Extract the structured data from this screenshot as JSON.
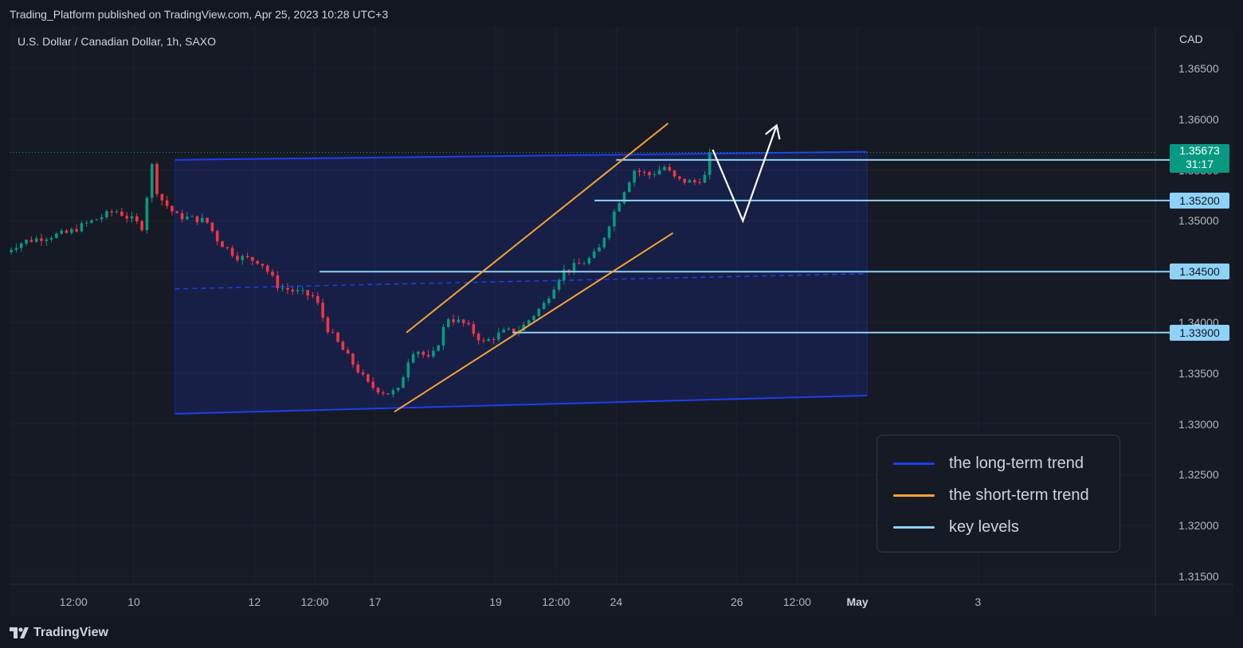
{
  "header": {
    "published_line": "Trading_Platform published on TradingView.com, Apr 25, 2023 10:28 UTC+3"
  },
  "chart": {
    "symbol_line": "U.S. Dollar / Canadian Dollar, 1h, SAXO",
    "currency": "CAD",
    "last_price": "1.35673",
    "countdown": "31:17"
  },
  "footer": {
    "brand": "TradingView",
    "logo_icon": "tradingview-logo-icon"
  },
  "legend": {
    "items": [
      {
        "label": "the long-term trend",
        "color": "#1e3ef0"
      },
      {
        "label": "the short-term trend",
        "color": "#f7a432"
      },
      {
        "label": "key levels",
        "color": "#8fd2f8"
      }
    ]
  },
  "colors": {
    "background": "#131722",
    "up_candle": "#089981",
    "down_candle": "#f23645",
    "long_term_channel": "#1e3ef0",
    "short_term_channel": "#f7a432",
    "key_levels": "#8fd2f8",
    "projection_arrow": "#ffffff"
  },
  "chart_data": {
    "type": "candlestick",
    "ylabel": "CAD",
    "ylim": [
      1.313,
      1.3685
    ],
    "y_ticks": [
      "1.36500",
      "1.36000",
      "1.35500",
      "1.35000",
      "1.34500",
      "1.34000",
      "1.33500",
      "1.33000",
      "1.32500",
      "1.32000",
      "1.31500"
    ],
    "x_ticks": [
      {
        "label": "12:00",
        "t": 0.5,
        "bold": false
      },
      {
        "label": "10",
        "t": 1,
        "bold": false
      },
      {
        "label": "12",
        "t": 2,
        "bold": false
      },
      {
        "label": "12:00",
        "t": 2.5,
        "bold": false
      },
      {
        "label": "17",
        "t": 3,
        "bold": false
      },
      {
        "label": "19",
        "t": 4,
        "bold": false
      },
      {
        "label": "12:00",
        "t": 4.5,
        "bold": false
      },
      {
        "label": "24",
        "t": 5,
        "bold": false
      },
      {
        "label": "26",
        "t": 6,
        "bold": false
      },
      {
        "label": "12:00",
        "t": 6.5,
        "bold": false
      },
      {
        "label": "May",
        "t": 7,
        "bold": true
      },
      {
        "label": "3",
        "t": 8,
        "bold": false
      }
    ],
    "price_path": [
      [
        -0.1,
        1.3465
      ],
      [
        0.0,
        1.3475
      ],
      [
        0.1,
        1.348
      ],
      [
        0.3,
        1.3485
      ],
      [
        0.45,
        1.3488
      ],
      [
        0.6,
        1.3497
      ],
      [
        0.75,
        1.3505
      ],
      [
        0.85,
        1.351
      ],
      [
        1.0,
        1.35
      ],
      [
        1.08,
        1.3493
      ],
      [
        1.14,
        1.356
      ],
      [
        1.2,
        1.3525
      ],
      [
        1.35,
        1.3505
      ],
      [
        1.6,
        1.35
      ],
      [
        1.7,
        1.348
      ],
      [
        1.85,
        1.3465
      ],
      [
        2.05,
        1.346
      ],
      [
        2.2,
        1.3435
      ],
      [
        2.5,
        1.3425
      ],
      [
        2.6,
        1.3395
      ],
      [
        2.75,
        1.337
      ],
      [
        2.95,
        1.3338
      ],
      [
        3.1,
        1.333
      ],
      [
        3.2,
        1.3333
      ],
      [
        3.26,
        1.336
      ],
      [
        3.33,
        1.3375
      ],
      [
        3.45,
        1.3363
      ],
      [
        3.5,
        1.3372
      ],
      [
        3.6,
        1.3405
      ],
      [
        3.75,
        1.3398
      ],
      [
        3.9,
        1.338
      ],
      [
        4.05,
        1.339
      ],
      [
        4.2,
        1.3393
      ],
      [
        4.4,
        1.3418
      ],
      [
        4.55,
        1.345
      ],
      [
        4.75,
        1.346
      ],
      [
        4.85,
        1.347
      ],
      [
        4.95,
        1.35
      ],
      [
        5.05,
        1.3527
      ],
      [
        5.15,
        1.355
      ],
      [
        5.28,
        1.3545
      ],
      [
        5.4,
        1.3553
      ],
      [
        5.5,
        1.354
      ],
      [
        5.65,
        1.3538
      ],
      [
        5.75,
        1.3545
      ],
      [
        5.8,
        1.3567
      ]
    ],
    "last_price": 1.35673,
    "key_levels": [
      1.356,
      1.352,
      1.345,
      1.339
    ],
    "long_term_channel": {
      "upper": [
        [
          1.34,
          1.356
        ],
        [
          7.08,
          1.3568
        ]
      ],
      "lower": [
        [
          1.34,
          1.331
        ],
        [
          7.08,
          1.3328
        ]
      ],
      "mid": [
        [
          1.34,
          1.3433
        ],
        [
          7.08,
          1.3448
        ]
      ]
    },
    "short_term_channel": {
      "upper": [
        [
          3.26,
          1.339
        ],
        [
          5.43,
          1.3596
        ]
      ],
      "lower": [
        [
          3.16,
          1.3312
        ],
        [
          5.47,
          1.3488
        ]
      ]
    },
    "projection": [
      [
        5.8,
        1.357
      ],
      [
        6.05,
        1.35
      ],
      [
        6.33,
        1.3594
      ]
    ]
  }
}
